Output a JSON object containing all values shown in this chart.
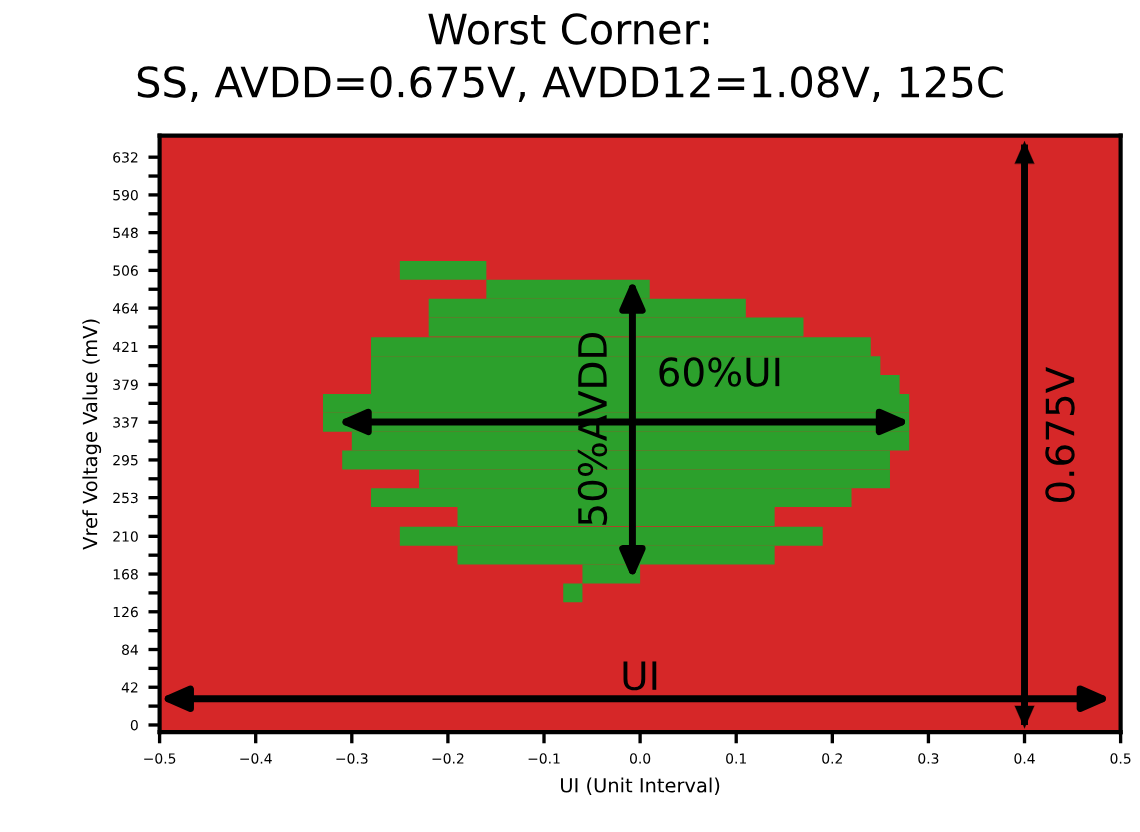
{
  "chart_data": {
    "type": "bar",
    "orientation": "horizontal",
    "title": "Worst Corner:\nSS, AVDD=0.675V, AVDD12=1.08V, 125C",
    "xlabel": "UI (Unit Interval)",
    "ylabel": "Vref Voltage Value (mV)",
    "x": [
      506,
      485,
      464,
      443,
      421,
      400,
      379,
      358,
      337,
      316,
      295,
      274,
      253,
      232,
      210,
      189,
      168,
      147
    ],
    "series": [
      {
        "color": "#2ca02c",
        "base": [
          -0.25,
          -0.16,
          -0.22,
          -0.22,
          -0.28,
          -0.28,
          -0.28,
          -0.33,
          -0.33,
          -0.3,
          -0.31,
          -0.23,
          -0.28,
          -0.19,
          -0.25,
          -0.19,
          -0.06,
          -0.08
        ],
        "values": [
          0.09,
          0.17,
          0.33,
          0.39,
          0.52,
          0.53,
          0.55,
          0.61,
          0.61,
          0.58,
          0.57,
          0.49,
          0.5,
          0.33,
          0.44,
          0.33,
          0.06,
          0.02
        ]
      }
    ],
    "annotations": [
      "60%UI",
      "50%AVDD",
      "UI"
    ],
    "ref_lines": [
      {
        "axis": "x",
        "value": 0.4,
        "label": "0.675V",
        "color": "#000000"
      }
    ],
    "bands": [
      {
        "axis": "x",
        "from": -0.5,
        "to": 0.5,
        "color": "#d62728"
      }
    ],
    "xlim": [
      -0.5,
      0.5
    ],
    "xticks": [
      {
        "value": -0.5,
        "label": "−0.5"
      },
      {
        "value": -0.4,
        "label": "−0.4"
      },
      {
        "value": -0.3,
        "label": "−0.3"
      },
      {
        "value": -0.2,
        "label": "−0.2"
      },
      {
        "value": -0.1,
        "label": "−0.1"
      },
      {
        "value": 0.0,
        "label": "0.0"
      },
      {
        "value": 0.1,
        "label": "0.1"
      },
      {
        "value": 0.2,
        "label": "0.2"
      },
      {
        "value": 0.3,
        "label": "0.3"
      },
      {
        "value": 0.4,
        "label": "0.4"
      },
      {
        "value": 0.5,
        "label": "0.5"
      }
    ],
    "ylim": [
      -8,
      656
    ],
    "yticks": [
      0,
      {
        "value": 21,
        "label": null
      },
      42,
      {
        "value": 63,
        "label": null
      },
      84,
      {
        "value": 105,
        "label": null
      },
      126,
      {
        "value": 147,
        "label": null
      },
      168,
      {
        "value": 189,
        "label": null
      },
      210,
      {
        "value": 232,
        "label": null
      },
      253,
      {
        "value": 274,
        "label": null
      },
      295,
      {
        "value": 316,
        "label": null
      },
      337,
      {
        "value": 358,
        "label": null
      },
      379,
      {
        "value": 400,
        "label": null
      },
      421,
      {
        "value": 443,
        "label": null
      },
      464,
      {
        "value": 485,
        "label": null
      },
      506,
      {
        "value": 527,
        "label": null
      },
      548,
      {
        "value": 569,
        "label": null
      },
      590,
      {
        "value": 611,
        "label": null
      },
      632
    ]
  }
}
